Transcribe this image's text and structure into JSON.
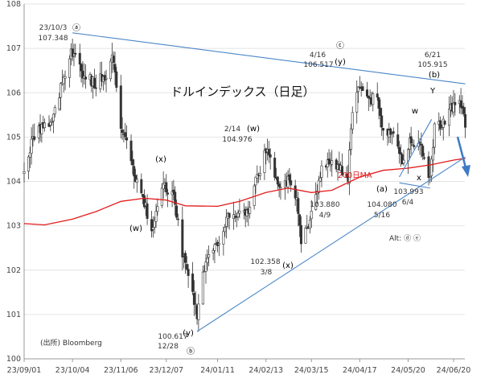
{
  "chart_data": {
    "type": "candlestick",
    "title": "ドルインデックス（日足）",
    "source": "(出所) Bloomberg",
    "ylim": [
      100,
      108
    ],
    "yticks": [
      100,
      101,
      102,
      103,
      104,
      105,
      106,
      107,
      108
    ],
    "xticks": [
      "23/09/01",
      "23/10/04",
      "23/11/06",
      "23/12/07",
      "24/01/11",
      "24/02/13",
      "24/03/15",
      "24/04/17",
      "24/05/20",
      "24/06/20"
    ],
    "ma_label": "200日MA",
    "ma200": [
      {
        "x": "23/09/01",
        "y": 103.05
      },
      {
        "x": "23/09/15",
        "y": 103.02
      },
      {
        "x": "23/10/04",
        "y": 103.15
      },
      {
        "x": "23/10/20",
        "y": 103.32
      },
      {
        "x": "23/11/06",
        "y": 103.55
      },
      {
        "x": "23/11/22",
        "y": 103.62
      },
      {
        "x": "23/12/07",
        "y": 103.58
      },
      {
        "x": "23/12/20",
        "y": 103.45
      },
      {
        "x": "24/01/11",
        "y": 103.44
      },
      {
        "x": "24/01/26",
        "y": 103.55
      },
      {
        "x": "24/02/13",
        "y": 103.75
      },
      {
        "x": "24/02/28",
        "y": 103.85
      },
      {
        "x": "24/03/15",
        "y": 103.75
      },
      {
        "x": "24/03/29",
        "y": 103.8
      },
      {
        "x": "24/04/17",
        "y": 104.1
      },
      {
        "x": "24/05/03",
        "y": 104.25
      },
      {
        "x": "24/05/20",
        "y": 104.3
      },
      {
        "x": "24/06/05",
        "y": 104.38
      },
      {
        "x": "24/06/20",
        "y": 104.48
      },
      {
        "x": "24/06/28",
        "y": 104.52
      }
    ],
    "price_path": [
      {
        "x": "23/09/01",
        "y": 104.2
      },
      {
        "x": "23/09/07",
        "y": 105.0
      },
      {
        "x": "23/09/14",
        "y": 105.3
      },
      {
        "x": "23/09/20",
        "y": 105.3
      },
      {
        "x": "23/09/25",
        "y": 106.0
      },
      {
        "x": "23/10/03",
        "y": 107.0
      },
      {
        "x": "23/10/12",
        "y": 106.4
      },
      {
        "x": "23/10/20",
        "y": 106.2
      },
      {
        "x": "23/10/26",
        "y": 106.4
      },
      {
        "x": "23/11/01",
        "y": 106.8
      },
      {
        "x": "23/11/06",
        "y": 105.3
      },
      {
        "x": "23/11/14",
        "y": 104.3
      },
      {
        "x": "23/11/21",
        "y": 103.6
      },
      {
        "x": "23/11/28",
        "y": 102.9
      },
      {
        "x": "23/12/05",
        "y": 104.0
      },
      {
        "x": "23/12/12",
        "y": 103.6
      },
      {
        "x": "23/12/18",
        "y": 102.4
      },
      {
        "x": "23/12/22",
        "y": 101.8
      },
      {
        "x": "23/12/28",
        "y": 101.0
      },
      {
        "x": "24/01/03",
        "y": 102.3
      },
      {
        "x": "24/01/11",
        "y": 102.5
      },
      {
        "x": "24/01/17",
        "y": 103.2
      },
      {
        "x": "24/01/24",
        "y": 103.2
      },
      {
        "x": "24/01/31",
        "y": 103.3
      },
      {
        "x": "24/02/07",
        "y": 104.1
      },
      {
        "x": "24/02/14",
        "y": 104.8
      },
      {
        "x": "24/02/21",
        "y": 104.0
      },
      {
        "x": "24/02/28",
        "y": 104.0
      },
      {
        "x": "24/03/05",
        "y": 103.5
      },
      {
        "x": "24/03/08",
        "y": 102.6
      },
      {
        "x": "24/03/15",
        "y": 103.3
      },
      {
        "x": "24/03/21",
        "y": 104.2
      },
      {
        "x": "24/03/29",
        "y": 104.5
      },
      {
        "x": "24/04/09",
        "y": 104.1
      },
      {
        "x": "24/04/11",
        "y": 105.3
      },
      {
        "x": "24/04/16",
        "y": 106.2
      },
      {
        "x": "24/04/22",
        "y": 105.9
      },
      {
        "x": "24/04/29",
        "y": 105.8
      },
      {
        "x": "24/05/03",
        "y": 105.1
      },
      {
        "x": "24/05/10",
        "y": 105.2
      },
      {
        "x": "24/05/16",
        "y": 104.4
      },
      {
        "x": "24/05/22",
        "y": 105.0
      },
      {
        "x": "24/05/29",
        "y": 104.7
      },
      {
        "x": "24/06/04",
        "y": 104.1
      },
      {
        "x": "24/06/07",
        "y": 105.2
      },
      {
        "x": "24/06/14",
        "y": 105.4
      },
      {
        "x": "24/06/21",
        "y": 105.8
      },
      {
        "x": "24/06/26",
        "y": 105.7
      },
      {
        "x": "24/06/28",
        "y": 105.2
      }
    ],
    "annotations": [
      {
        "date": "23/10/3",
        "value": "107.348"
      },
      {
        "date": "12/28",
        "value": "100.617"
      },
      {
        "date": "2/14",
        "value": "104.976"
      },
      {
        "date": "3/8",
        "value": "102.358"
      },
      {
        "date": "4/9",
        "value": "103.880"
      },
      {
        "date": "4/16",
        "value": "106.517"
      },
      {
        "date": "5/16",
        "value": "104.080"
      },
      {
        "date": "6/4",
        "value": "103.993"
      },
      {
        "date": "6/21",
        "value": "105.915"
      }
    ],
    "wave_labels": [
      "ⓐ",
      "ⓑ",
      "ⓒ",
      "(x)",
      "(w)",
      "(y)",
      "(w)",
      "(x)",
      "(y)",
      "(a)",
      "(b)",
      "w",
      "x",
      "Y"
    ],
    "alt_text": "Alt: ⓓ   ⓔ",
    "trendlines": [
      {
        "from": {
          "x": "23/10/04",
          "y": 107.35
        },
        "to": {
          "x": "24/06/28",
          "y": 106.2
        }
      },
      {
        "from": {
          "x": "23/12/28",
          "y": 100.617
        },
        "to": {
          "x": "24/06/28",
          "y": 104.55
        }
      },
      {
        "from": {
          "x": "24/05/14",
          "y": 104.1
        },
        "to": {
          "x": "24/06/05",
          "y": 105.4
        }
      },
      {
        "from": {
          "x": "24/05/14",
          "y": 103.97
        },
        "to": {
          "x": "24/06/04",
          "y": 103.85
        }
      }
    ]
  }
}
